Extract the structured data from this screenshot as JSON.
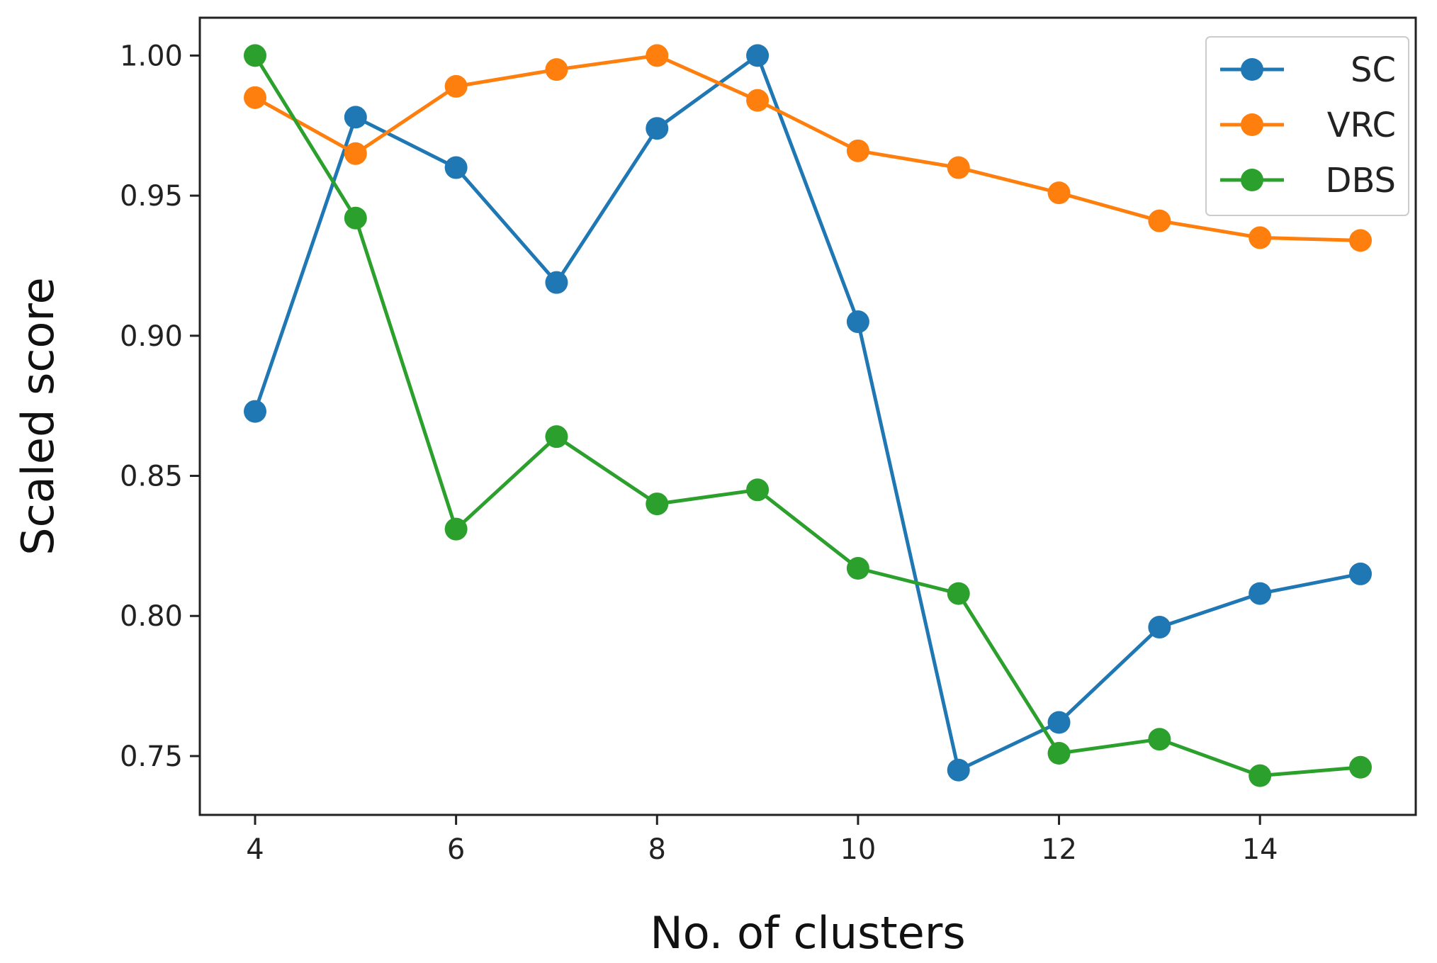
{
  "chart_data": {
    "type": "line",
    "title": "",
    "xlabel": "No. of clusters",
    "ylabel": "Scaled score",
    "x": [
      4,
      5,
      6,
      7,
      8,
      9,
      10,
      11,
      12,
      13,
      14,
      15
    ],
    "xlim": [
      3.45,
      15.55
    ],
    "ylim": [
      0.729,
      1.0135
    ],
    "xticks": [
      4,
      6,
      8,
      10,
      12,
      14
    ],
    "xtick_labels": [
      "4",
      "6",
      "8",
      "10",
      "12",
      "14"
    ],
    "yticks": [
      0.75,
      0.8,
      0.85,
      0.9,
      0.95,
      1.0
    ],
    "ytick_labels": [
      "0.75",
      "0.80",
      "0.85",
      "0.90",
      "0.95",
      "1.00"
    ],
    "grid": false,
    "legend_position": "top-right",
    "series": [
      {
        "name": "SC",
        "color": "#1f77b4",
        "values": [
          0.873,
          0.978,
          0.96,
          0.919,
          0.974,
          1.0,
          0.905,
          0.745,
          0.762,
          0.796,
          0.808,
          0.815
        ]
      },
      {
        "name": "VRC",
        "color": "#ff7f0e",
        "values": [
          0.985,
          0.965,
          0.989,
          0.995,
          1.0,
          0.984,
          0.966,
          0.96,
          0.951,
          0.941,
          0.935,
          0.934
        ]
      },
      {
        "name": "DBS",
        "color": "#2ca02c",
        "values": [
          1.0,
          0.942,
          0.831,
          0.864,
          0.84,
          0.845,
          0.817,
          0.808,
          0.751,
          0.756,
          0.743,
          0.746
        ]
      }
    ]
  }
}
